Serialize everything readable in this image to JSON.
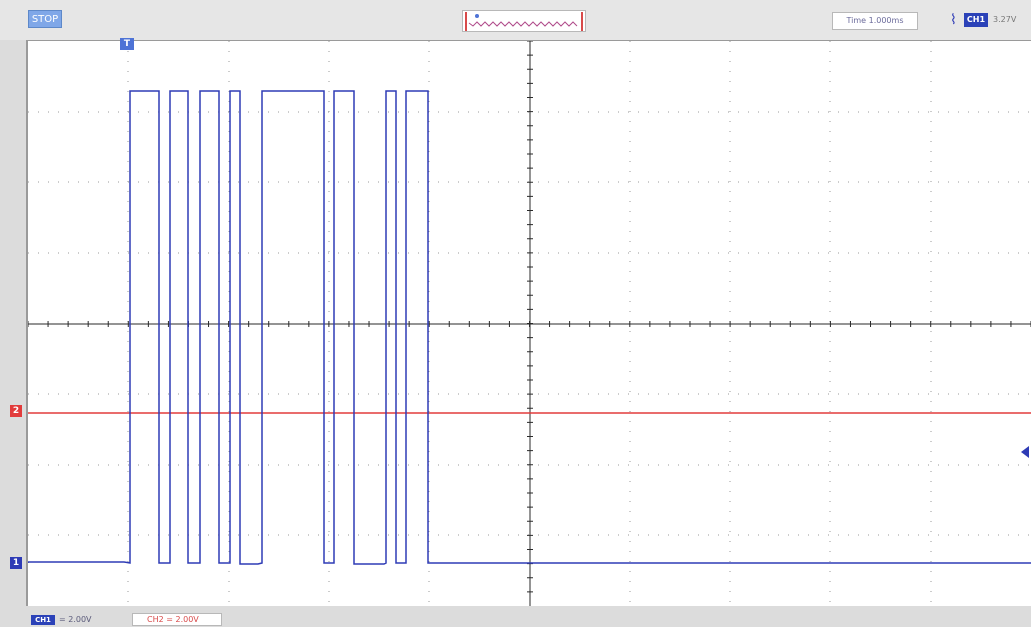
{
  "toolbar": {
    "run_state": "STOP",
    "time_label": "Time 1.000ms",
    "trigger_channel": "CH1",
    "trigger_level": "3.27V"
  },
  "channels": {
    "ch1": {
      "marker": "1",
      "tag": "CH1",
      "scale": "= 2.00V",
      "color": "#2e3bb5"
    },
    "ch2": {
      "marker": "2",
      "scale": "CH2 = 2.00V",
      "color": "#e23b3b"
    }
  },
  "trigger": {
    "marker": "T",
    "icon": "rising-edge-trigger-icon"
  },
  "colors": {
    "grid": "#2a2a2a",
    "grid_dots": "#9a9a9a",
    "ch1_trace": "#2e3bb5",
    "ch2_trace": "#e23b3b"
  }
}
